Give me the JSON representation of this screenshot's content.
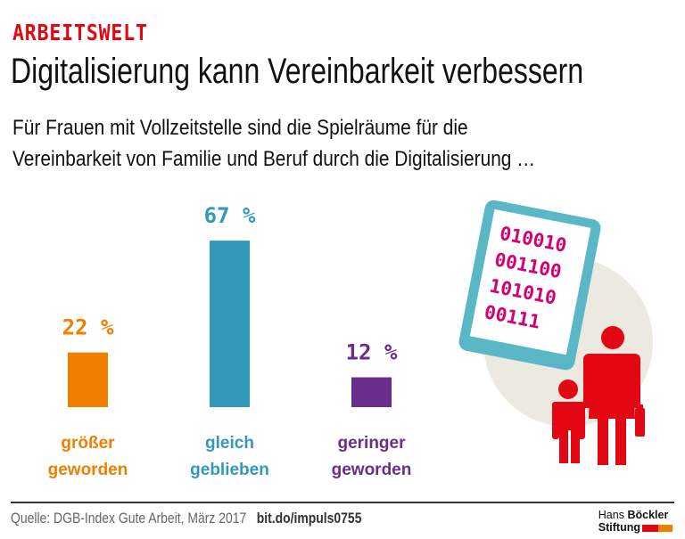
{
  "header": {
    "kicker": "ARBEITSWELT",
    "title": "Digitalisierung kann Vereinbarkeit verbessern",
    "subtitle_line1": "Für Frauen mit Vollzeitstelle sind die Spielräume für die",
    "subtitle_line2": "Vereinbarkeit von Familie und Beruf durch die Digitalisierung …"
  },
  "colors": {
    "accent_red": "#e30613",
    "orange": "#f07f00",
    "blue": "#3399bb",
    "purple": "#6b2d8b",
    "tablet": "#5ab8c6",
    "binary": "#d6006f",
    "circle": "#ece9e0"
  },
  "chart_data": {
    "type": "bar",
    "title": "Digitalisierung kann Vereinbarkeit verbessern",
    "xlabel": "",
    "ylabel": "",
    "unit": "%",
    "ylim": [
      0,
      100
    ],
    "grid": false,
    "categories": [
      "größer geworden",
      "gleich geblieben",
      "geringer geworden"
    ],
    "category_lines": [
      [
        "größer",
        "geworden"
      ],
      [
        "gleich",
        "geblieben"
      ],
      [
        "geringer",
        "geworden"
      ]
    ],
    "values": [
      22,
      67,
      12
    ],
    "value_labels": [
      "22 %",
      "67 %",
      "12 %"
    ],
    "bar_colors": [
      "#f07f00",
      "#3399bb",
      "#6b2d8b"
    ]
  },
  "illustration": {
    "binary_lines": [
      "010010",
      "001100",
      "101010",
      "00111"
    ]
  },
  "footer": {
    "source": "Quelle: DGB-Index Gute Arbeit, März 2017",
    "link": "bit.do/impuls0755",
    "logo_line1_light": "Hans",
    "logo_line1_bold": "Böckler",
    "logo_line2": "Stiftung"
  }
}
